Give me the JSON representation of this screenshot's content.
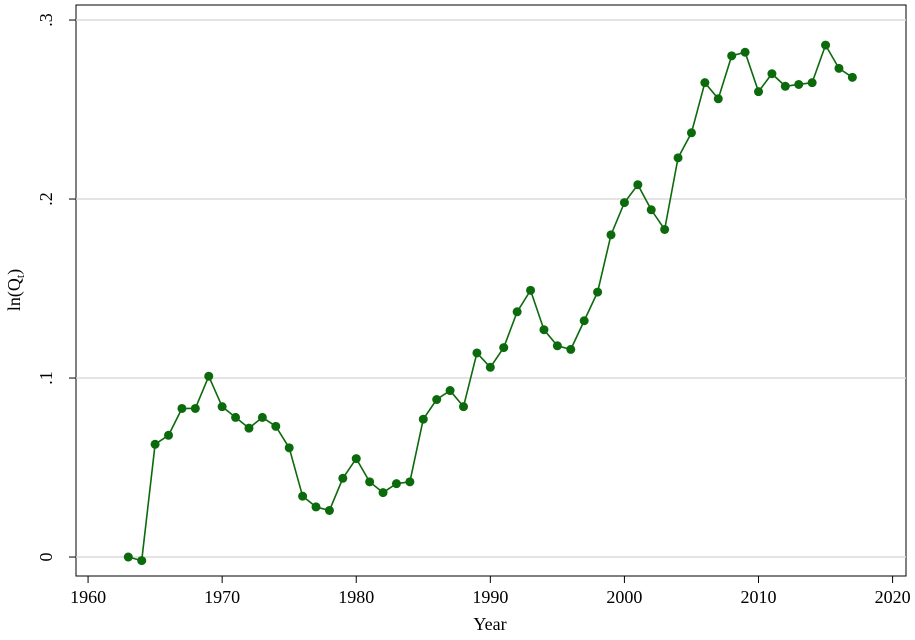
{
  "chart_data": {
    "type": "line",
    "xlabel": "Year",
    "ylabel_parts": [
      "ln(Q",
      "t",
      ")"
    ],
    "x": [
      1963,
      1964,
      1965,
      1966,
      1967,
      1968,
      1969,
      1970,
      1971,
      1972,
      1973,
      1974,
      1975,
      1976,
      1977,
      1978,
      1979,
      1980,
      1981,
      1982,
      1983,
      1984,
      1985,
      1986,
      1987,
      1988,
      1989,
      1990,
      1991,
      1992,
      1993,
      1994,
      1995,
      1996,
      1997,
      1998,
      1999,
      2000,
      2001,
      2002,
      2003,
      2004,
      2005,
      2006,
      2007,
      2008,
      2009,
      2010,
      2011,
      2012,
      2013,
      2014,
      2015,
      2016,
      2017
    ],
    "series": [
      {
        "color": "#0b6a0b",
        "values": [
          0.0,
          -0.002,
          0.063,
          0.068,
          0.083,
          0.083,
          0.101,
          0.084,
          0.078,
          0.072,
          0.078,
          0.073,
          0.061,
          0.034,
          0.028,
          0.026,
          0.044,
          0.055,
          0.042,
          0.036,
          0.041,
          0.042,
          0.077,
          0.088,
          0.093,
          0.084,
          0.114,
          0.106,
          0.117,
          0.137,
          0.149,
          0.127,
          0.118,
          0.116,
          0.132,
          0.148,
          0.18,
          0.198,
          0.208,
          0.194,
          0.183,
          0.223,
          0.237,
          0.265,
          0.256,
          0.28,
          0.282,
          0.26,
          0.27,
          0.263,
          0.264,
          0.265,
          0.286,
          0.273,
          0.268
        ]
      }
    ],
    "xlim": [
      1959.1,
      2021.0
    ],
    "xticks": [
      1960,
      1970,
      1980,
      1990,
      2000,
      2010,
      2020
    ],
    "ylim": [
      -0.0106,
      0.3084
    ],
    "yticks": [
      0,
      {
        "value": 0.1,
        "label": ".1"
      },
      {
        "value": 0.2,
        "label": ".2"
      },
      {
        "value": 0.3,
        "label": ".3"
      }
    ],
    "grid": true
  }
}
